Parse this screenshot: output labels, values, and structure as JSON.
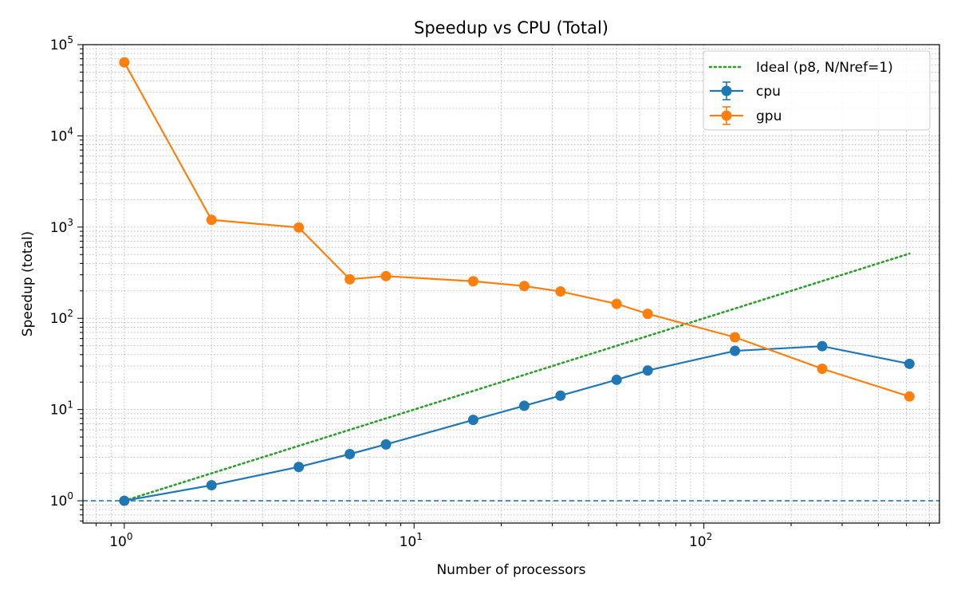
{
  "chart_data": {
    "type": "line",
    "title": "Speedup vs CPU (Total)",
    "xlabel": "Number of processors",
    "ylabel": "Speedup (total)",
    "xscale": "log",
    "yscale": "log",
    "xlim": [
      0.72,
      650
    ],
    "ylim": [
      0.57,
      100000
    ],
    "grid": true,
    "legend_position": "top-right",
    "x_ticks": [
      {
        "value": 1,
        "base": "10",
        "exp": "0"
      },
      {
        "value": 10,
        "base": "10",
        "exp": "1"
      },
      {
        "value": 100,
        "base": "10",
        "exp": "2"
      }
    ],
    "y_ticks": [
      {
        "value": 1,
        "base": "10",
        "exp": "0"
      },
      {
        "value": 10,
        "base": "10",
        "exp": "1"
      },
      {
        "value": 100,
        "base": "10",
        "exp": "2"
      },
      {
        "value": 1000,
        "base": "10",
        "exp": "3"
      },
      {
        "value": 10000,
        "base": "10",
        "exp": "4"
      },
      {
        "value": 100000,
        "base": "10",
        "exp": "5"
      }
    ],
    "series": [
      {
        "name": "Ideal (p8, N/Nref=1)",
        "color": "#2ca02c",
        "style": "dotted",
        "x": [
          1,
          512
        ],
        "y": [
          1,
          512
        ]
      },
      {
        "name": "cpu",
        "color": "#1f77b4",
        "style": "solid-marker",
        "x": [
          1,
          2,
          4,
          6,
          8,
          16,
          24,
          32,
          50,
          64,
          128,
          256,
          512
        ],
        "y": [
          1.0,
          1.48,
          2.35,
          3.25,
          4.15,
          7.7,
          11.0,
          14.2,
          21.2,
          26.8,
          44.0,
          49.5,
          31.7
        ]
      },
      {
        "name": "gpu",
        "color": "#ff7f0e",
        "style": "solid-marker",
        "x": [
          1,
          2,
          4,
          6,
          8,
          16,
          24,
          32,
          50,
          64,
          128,
          256,
          512
        ],
        "y": [
          64000,
          1200,
          990,
          268,
          290,
          255,
          226,
          197,
          144,
          112,
          62,
          28,
          13.9
        ]
      }
    ],
    "reference_line": {
      "y": 1,
      "color": "#1f77b4",
      "style": "dashed"
    }
  }
}
